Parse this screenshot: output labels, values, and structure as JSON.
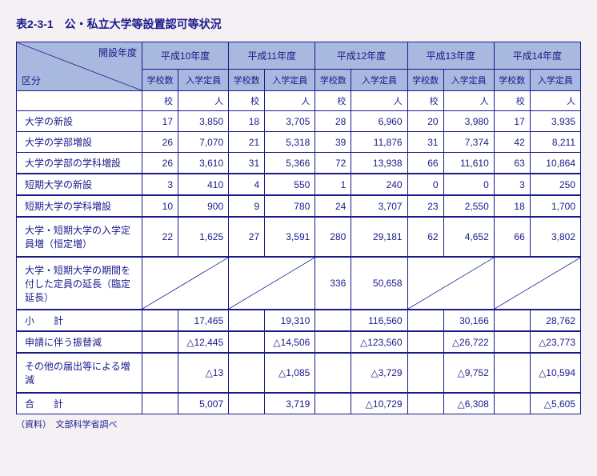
{
  "title": "表2-3-1　公・私立大学等設置認可等状況",
  "source": "（資料）　文部科学省調べ",
  "header": {
    "corner_top": "開設年度",
    "corner_bottom": "区分",
    "years": [
      "平成10年度",
      "平成11年度",
      "平成12年度",
      "平成13年度",
      "平成14年度"
    ],
    "sub": [
      "学校数",
      "入学定員"
    ],
    "units": [
      "校",
      "人"
    ]
  },
  "rows": [
    {
      "label": "大学の新設",
      "v": [
        [
          "17",
          "3,850"
        ],
        [
          "18",
          "3,705"
        ],
        [
          "28",
          "6,960"
        ],
        [
          "20",
          "3,980"
        ],
        [
          "17",
          "3,935"
        ]
      ]
    },
    {
      "label": "大学の学部増設",
      "v": [
        [
          "26",
          "7,070"
        ],
        [
          "21",
          "5,318"
        ],
        [
          "39",
          "11,876"
        ],
        [
          "31",
          "7,374"
        ],
        [
          "42",
          "8,211"
        ]
      ]
    },
    {
      "label": "大学の学部の学科増設",
      "v": [
        [
          "26",
          "3,610"
        ],
        [
          "31",
          "5,366"
        ],
        [
          "72",
          "13,938"
        ],
        [
          "66",
          "11,610"
        ],
        [
          "63",
          "10,864"
        ]
      ]
    }
  ],
  "rows2": [
    {
      "label": "短期大学の新設",
      "v": [
        [
          "3",
          "410"
        ],
        [
          "4",
          "550"
        ],
        [
          "1",
          "240"
        ],
        [
          "0",
          "0"
        ],
        [
          "3",
          "250"
        ]
      ]
    },
    {
      "label": "短期大学の学科増設",
      "v": [
        [
          "10",
          "900"
        ],
        [
          "9",
          "780"
        ],
        [
          "24",
          "3,707"
        ],
        [
          "23",
          "2,550"
        ],
        [
          "18",
          "1,700"
        ]
      ]
    }
  ],
  "rows3": [
    {
      "label": "大学・短期大学の入学定員増（恒定増）",
      "v": [
        [
          "22",
          "1,625"
        ],
        [
          "27",
          "3,591"
        ],
        [
          "280",
          "29,181"
        ],
        [
          "62",
          "4,652"
        ],
        [
          "66",
          "3,802"
        ]
      ]
    }
  ],
  "diag_row": {
    "label": "大学・短期大学の期間を付した定員の延長（臨定延長）",
    "diag": [
      true,
      true,
      false,
      true,
      true
    ],
    "v": [
      [
        "",
        ""
      ],
      [
        "",
        ""
      ],
      [
        "336",
        "50,658"
      ],
      [
        "",
        ""
      ],
      [
        "",
        ""
      ]
    ]
  },
  "subtotal": {
    "label": "小　　計",
    "v": [
      [
        "",
        "17,465"
      ],
      [
        "",
        "19,310"
      ],
      [
        "",
        "116,560"
      ],
      [
        "",
        "30,166"
      ],
      [
        "",
        "28,762"
      ]
    ]
  },
  "rows4": [
    {
      "label": "申請に伴う振替減",
      "v": [
        [
          "",
          "△12,445"
        ],
        [
          "",
          "△14,506"
        ],
        [
          "",
          "△123,560"
        ],
        [
          "",
          "△26,722"
        ],
        [
          "",
          "△23,773"
        ]
      ]
    }
  ],
  "rows5": [
    {
      "label": "その他の届出等による増減",
      "v": [
        [
          "",
          "△13"
        ],
        [
          "",
          "△1,085"
        ],
        [
          "",
          "△3,729"
        ],
        [
          "",
          "△9,752"
        ],
        [
          "",
          "△10,594"
        ]
      ]
    }
  ],
  "total": {
    "label": "合　　計",
    "v": [
      [
        "",
        "5,007"
      ],
      [
        "",
        "3,719"
      ],
      [
        "",
        "△10,729"
      ],
      [
        "",
        "△6,308"
      ],
      [
        "",
        "△5,605"
      ]
    ]
  },
  "colors": {
    "border": "#1a1a8a",
    "header_bg": "#a9b8de",
    "text": "#1a1a8a",
    "page_bg": "#f5f0f4"
  }
}
